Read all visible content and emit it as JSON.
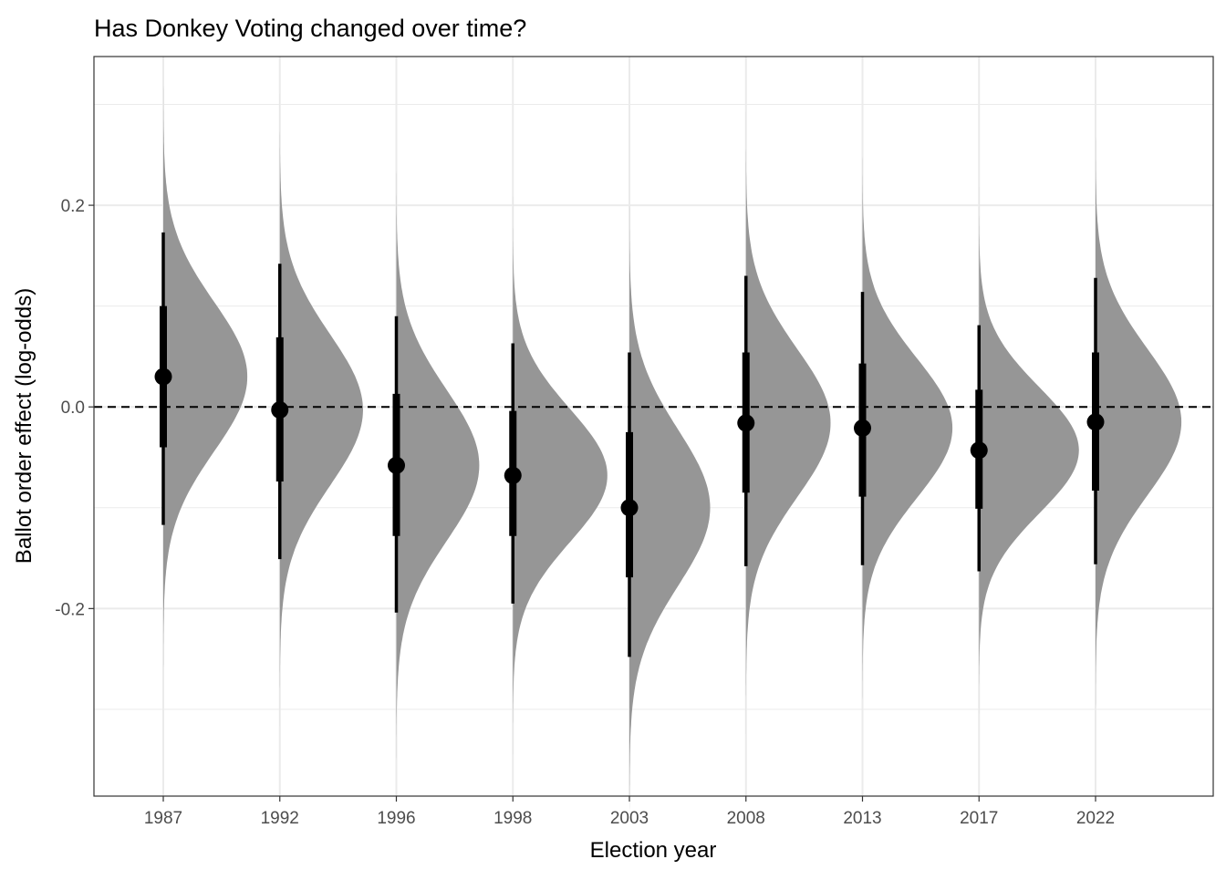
{
  "chart_data": {
    "type": "halfeye",
    "title": "Has Donkey Voting changed over time?",
    "xlabel": "Election year",
    "ylabel": "Ballot order effect (log-odds)",
    "ylim": [
      -0.386,
      0.3475
    ],
    "y_major_ticks": [
      -0.2,
      0.0,
      0.2
    ],
    "y_tick_labels": [
      "-0.2",
      "0.0",
      "0.2"
    ],
    "y_minor_ticks": [
      -0.3,
      -0.1,
      0.1,
      0.3
    ],
    "reference_line": 0.0,
    "grid": true,
    "interval_levels": [
      "66%",
      "95%"
    ],
    "categories": [
      "1987",
      "1992",
      "1996",
      "1998",
      "2003",
      "2008",
      "2013",
      "2017",
      "2022"
    ],
    "series": [
      {
        "name": "1987",
        "median": 0.03,
        "inner": [
          -0.04,
          0.1
        ],
        "outer": [
          -0.117,
          0.173
        ]
      },
      {
        "name": "1992",
        "median": -0.003,
        "inner": [
          -0.074,
          0.069
        ],
        "outer": [
          -0.151,
          0.142
        ]
      },
      {
        "name": "1996",
        "median": -0.058,
        "inner": [
          -0.128,
          0.013
        ],
        "outer": [
          -0.204,
          0.09
        ]
      },
      {
        "name": "1998",
        "median": -0.068,
        "inner": [
          -0.128,
          -0.004
        ],
        "outer": [
          -0.195,
          0.063
        ]
      },
      {
        "name": "2003",
        "median": -0.1,
        "inner": [
          -0.169,
          -0.025
        ],
        "outer": [
          -0.248,
          0.054
        ]
      },
      {
        "name": "2008",
        "median": -0.016,
        "inner": [
          -0.085,
          0.054
        ],
        "outer": [
          -0.158,
          0.13
        ]
      },
      {
        "name": "2013",
        "median": -0.021,
        "inner": [
          -0.089,
          0.043
        ],
        "outer": [
          -0.157,
          0.114
        ]
      },
      {
        "name": "2017",
        "median": -0.043,
        "inner": [
          -0.101,
          0.017
        ],
        "outer": [
          -0.163,
          0.081
        ]
      },
      {
        "name": "2022",
        "median": -0.015,
        "inner": [
          -0.083,
          0.054
        ],
        "outer": [
          -0.156,
          0.128
        ]
      }
    ],
    "colors": {
      "density": "#969696",
      "interval": "#000000",
      "grid": "#ebebeb"
    }
  }
}
